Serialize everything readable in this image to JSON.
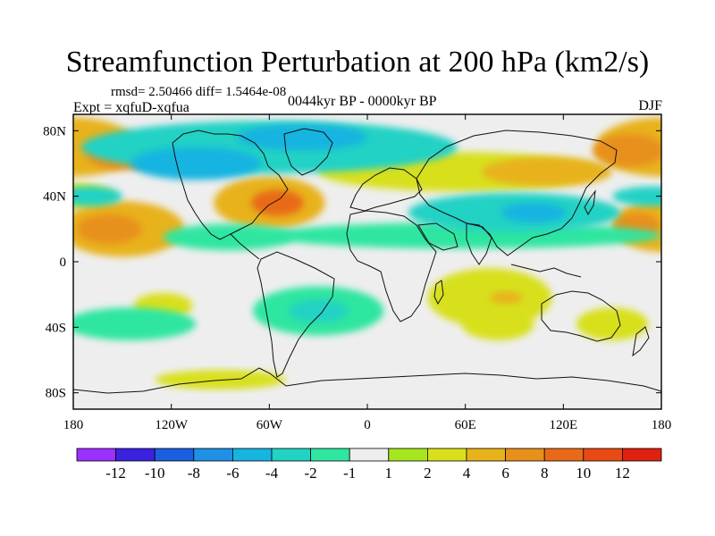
{
  "title": "Streamfunction Perturbation at 200 hPa (km2/s)",
  "stats_text": "rmsd= 2.50466 diff= 1.5464e-08",
  "expt_text": "Expt = xqfuD-xqfua",
  "period_text": "0044kyr BP - 0000kyr BP",
  "season": "DJF",
  "axes": {
    "lon_ticks": [
      {
        "lon": -180,
        "label": "180"
      },
      {
        "lon": -120,
        "label": "120W"
      },
      {
        "lon": -60,
        "label": "60W"
      },
      {
        "lon": 0,
        "label": "0"
      },
      {
        "lon": 60,
        "label": "60E"
      },
      {
        "lon": 120,
        "label": "120E"
      },
      {
        "lon": 180,
        "label": "180"
      }
    ],
    "lat_ticks": [
      {
        "lat": 80,
        "label": "80N"
      },
      {
        "lat": 40,
        "label": "40N"
      },
      {
        "lat": 0,
        "label": "0"
      },
      {
        "lat": -40,
        "label": "40S"
      },
      {
        "lat": -80,
        "label": "80S"
      }
    ],
    "lon_range": [
      -180,
      180
    ],
    "lat_range": [
      -90,
      90
    ]
  },
  "colorbar": {
    "colors": [
      "#9b30ff",
      "#3a22e0",
      "#1a5fe0",
      "#1e90e6",
      "#17b4e0",
      "#22d2c4",
      "#2fe6a0",
      "#eeeeee",
      "#a6e61e",
      "#d8e01c",
      "#e8b21a",
      "#e8901c",
      "#e86a18",
      "#e84a14",
      "#e02010"
    ],
    "labels": [
      "-12",
      "-10",
      "-8",
      "-6",
      "-4",
      "-2",
      "-1",
      "1",
      "2",
      "4",
      "6",
      "8",
      "10",
      "12"
    ]
  },
  "anomalies": [
    {
      "lon": -180,
      "lat": 70,
      "rlon": 40,
      "rlat": 18,
      "level": 4
    },
    {
      "lon": -150,
      "lat": 66,
      "rlon": 22,
      "rlat": 10,
      "level": 6
    },
    {
      "lon": 180,
      "lat": 70,
      "rlon": 40,
      "rlat": 18,
      "level": 4
    },
    {
      "lon": 160,
      "lat": 68,
      "rlon": 22,
      "rlat": 10,
      "level": 6
    },
    {
      "lon": -180,
      "lat": 40,
      "rlon": 25,
      "rlat": 8,
      "level": 2
    },
    {
      "lon": -150,
      "lat": 20,
      "rlon": 38,
      "rlat": 17,
      "level": 4
    },
    {
      "lon": -158,
      "lat": 20,
      "rlon": 20,
      "rlat": 9,
      "level": 6
    },
    {
      "lon": 180,
      "lat": 22,
      "rlon": 30,
      "rlat": 16,
      "level": 4
    },
    {
      "lon": 165,
      "lat": 22,
      "rlon": 14,
      "rlat": 8,
      "level": 6
    },
    {
      "lon": -60,
      "lat": 36,
      "rlon": 34,
      "rlat": 16,
      "level": 4
    },
    {
      "lon": -55,
      "lat": 36,
      "rlon": 16,
      "rlat": 8,
      "level": 8
    },
    {
      "lon": 55,
      "lat": 55,
      "rlon": 85,
      "rlat": 12,
      "level": 2
    },
    {
      "lon": 110,
      "lat": 55,
      "rlon": 40,
      "rlat": 9,
      "level": 4
    },
    {
      "lon": 60,
      "lat": 16,
      "rlon": 120,
      "rlat": 8,
      "level": -1
    },
    {
      "lon": -85,
      "lat": 15,
      "rlon": 40,
      "rlat": 8,
      "level": -1
    },
    {
      "lon": -60,
      "lat": 70,
      "rlon": 115,
      "rlat": 16,
      "level": -2
    },
    {
      "lon": -105,
      "lat": 60,
      "rlon": 40,
      "rlat": 10,
      "level": -4
    },
    {
      "lon": -40,
      "lat": 76,
      "rlon": 40,
      "rlat": 8,
      "level": -4
    },
    {
      "lon": 90,
      "lat": 30,
      "rlon": 65,
      "rlat": 12,
      "level": -2
    },
    {
      "lon": 102,
      "lat": 30,
      "rlon": 20,
      "rlat": 6,
      "level": -4
    },
    {
      "lon": -170,
      "lat": 40,
      "rlon": 20,
      "rlat": 6,
      "level": -2
    },
    {
      "lon": 175,
      "lat": 40,
      "rlon": 25,
      "rlat": 6,
      "level": -2
    },
    {
      "lon": 75,
      "lat": -22,
      "rlon": 38,
      "rlat": 18,
      "level": 2
    },
    {
      "lon": 85,
      "lat": -22,
      "rlon": 10,
      "rlat": 4,
      "level": 4
    },
    {
      "lon": 80,
      "lat": -38,
      "rlon": 22,
      "rlat": 10,
      "level": 2
    },
    {
      "lon": -30,
      "lat": -30,
      "rlon": 40,
      "rlat": 15,
      "level": -1
    },
    {
      "lon": -30,
      "lat": -30,
      "rlon": 18,
      "rlat": 7,
      "level": -2
    },
    {
      "lon": -125,
      "lat": -27,
      "rlon": 18,
      "rlat": 8,
      "level": 2
    },
    {
      "lon": -145,
      "lat": -38,
      "rlon": 40,
      "rlat": 10,
      "level": -1
    },
    {
      "lon": 150,
      "lat": -38,
      "rlon": 22,
      "rlat": 10,
      "level": 2
    },
    {
      "lon": -90,
      "lat": -72,
      "rlon": 40,
      "rlat": 6,
      "level": 2
    }
  ]
}
